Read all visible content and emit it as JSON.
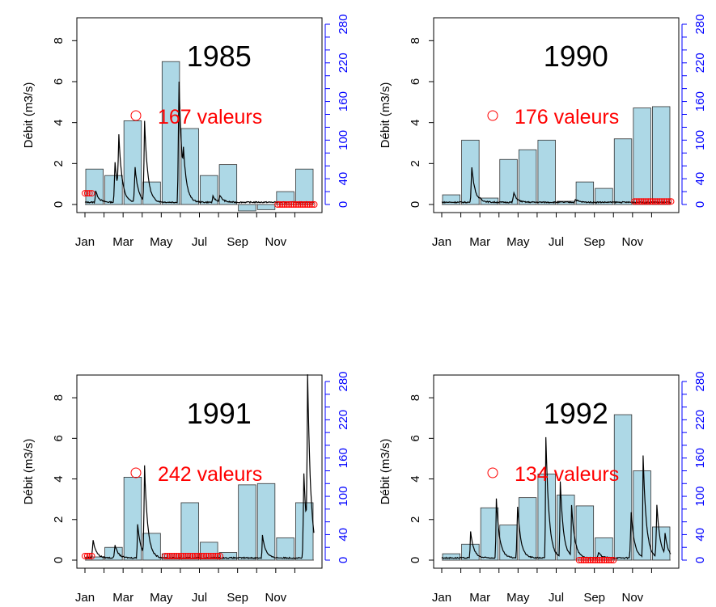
{
  "shared": {
    "x_tick_labels": [
      "Jan",
      "Mar",
      "May",
      "Jul",
      "Sep",
      "Nov"
    ],
    "y_left_label": "Débit (m3/s)",
    "y_left_ticks": [
      "0",
      "2",
      "4",
      "6",
      "8"
    ],
    "y_right_ticks": [
      "0",
      "40",
      "100",
      "160",
      "220",
      "280"
    ],
    "colors": {
      "bars": "#add8e6",
      "flow_line": "#000000",
      "missing": "#ff0000",
      "right_axis": "#0000ff"
    },
    "legend_marker": "red-circle"
  },
  "chart_data": [
    {
      "type": "bar",
      "title": "1985",
      "annotation": "167 valeurs",
      "months": [
        1,
        2,
        3,
        4,
        5,
        6,
        7,
        8,
        9,
        10,
        11,
        12
      ],
      "monthly_bars_right_axis": [
        55,
        45,
        130,
        35,
        222,
        118,
        45,
        62,
        -10,
        -8,
        20,
        55
      ],
      "daily_flow_peaks": [
        [
          0.55,
          0.6
        ],
        [
          1.55,
          2.3
        ],
        [
          1.75,
          3.2
        ],
        [
          2.6,
          2.0
        ],
        [
          3.1,
          4.5
        ],
        [
          4.9,
          7.1
        ],
        [
          5.15,
          1.3
        ],
        [
          6.7,
          0.3
        ],
        [
          7.05,
          0.35
        ]
      ],
      "missing_segments": [
        [
          0.0,
          0.4,
          0.55
        ],
        [
          10.1,
          12.1,
          0.0
        ]
      ],
      "y_left_range": [
        0,
        9
      ],
      "y_right_range": [
        0,
        280
      ]
    },
    {
      "type": "bar",
      "title": "1990",
      "annotation": "176 valeurs",
      "months": [
        1,
        2,
        3,
        4,
        5,
        6,
        7,
        8,
        9,
        10,
        11,
        12
      ],
      "monthly_bars_right_axis": [
        15,
        100,
        10,
        70,
        85,
        100,
        5,
        35,
        25,
        102,
        150,
        152
      ],
      "daily_flow_peaks": [
        [
          1.55,
          2.05
        ],
        [
          2.0,
          0.1
        ],
        [
          3.75,
          0.55
        ],
        [
          7.0,
          0.15
        ]
      ],
      "missing_segments": [
        [
          10.1,
          12.1,
          0.15
        ]
      ],
      "y_left_range": [
        0,
        9
      ],
      "y_right_range": [
        0,
        280
      ]
    },
    {
      "type": "bar",
      "title": "1991",
      "annotation": "242 valeurs",
      "months": [
        1,
        2,
        3,
        4,
        5,
        6,
        7,
        8,
        9,
        10,
        11,
        12
      ],
      "monthly_bars_right_axis": [
        5,
        20,
        130,
        42,
        10,
        90,
        28,
        12,
        118,
        120,
        35,
        90
      ],
      "daily_flow_peaks": [
        [
          0.4,
          1.05
        ],
        [
          1.55,
          0.75
        ],
        [
          2.75,
          1.8
        ],
        [
          3.1,
          5.0
        ],
        [
          9.3,
          1.15
        ],
        [
          11.45,
          4.8
        ],
        [
          11.65,
          8.8
        ]
      ],
      "missing_segments": [
        [
          0.0,
          0.4,
          0.2
        ],
        [
          4.2,
          7.1,
          0.2
        ]
      ],
      "y_left_range": [
        0,
        9
      ],
      "y_right_range": [
        0,
        280
      ]
    },
    {
      "type": "bar",
      "title": "1992",
      "annotation": "134 valeurs",
      "months": [
        1,
        2,
        3,
        4,
        5,
        6,
        7,
        8,
        9,
        10,
        11,
        12
      ],
      "monthly_bars_right_axis": [
        10,
        25,
        82,
        55,
        98,
        135,
        102,
        85,
        35,
        228,
        140,
        52
      ],
      "daily_flow_peaks": [
        [
          1.5,
          1.4
        ],
        [
          2.85,
          3.1
        ],
        [
          3.95,
          3.0
        ],
        [
          5.45,
          6.2
        ],
        [
          6.2,
          4.0
        ],
        [
          6.8,
          2.6
        ],
        [
          8.2,
          0.3
        ],
        [
          9.9,
          2.7
        ],
        [
          10.55,
          5.1
        ],
        [
          11.25,
          3.0
        ],
        [
          11.7,
          1.05
        ]
      ],
      "missing_segments": [
        [
          7.2,
          9.1,
          0.0
        ]
      ],
      "y_left_range": [
        0,
        9
      ],
      "y_right_range": [
        0,
        280
      ]
    }
  ]
}
